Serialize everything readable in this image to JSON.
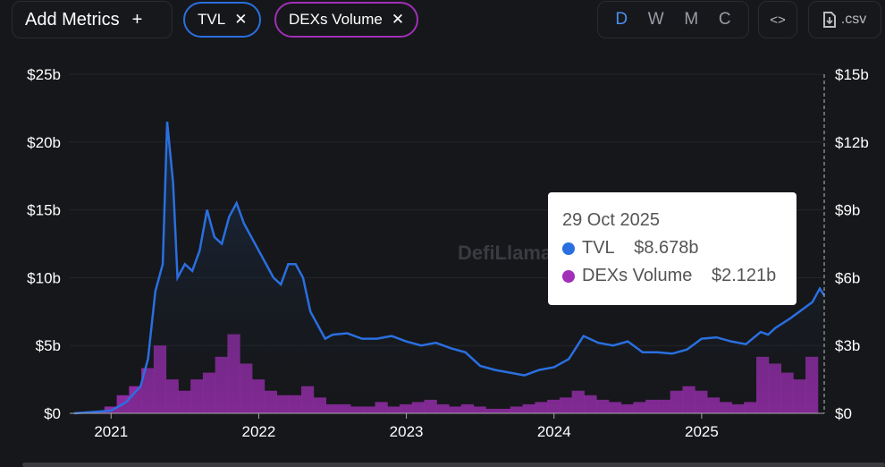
{
  "toolbar": {
    "add_metrics": "Add Metrics",
    "add_icon": "+",
    "chips": [
      {
        "label": "TVL",
        "color": "#2a6fe0"
      },
      {
        "label": "DEXs Volume",
        "color": "#a12fb8"
      }
    ],
    "remove_icon": "✕",
    "periods": [
      "D",
      "W",
      "M",
      "C"
    ],
    "active_period": "D",
    "embed_icon": "<>",
    "csv_label": ".csv"
  },
  "watermark": "DefiLlama",
  "tooltip": {
    "date": "29 Oct 2025",
    "rows": [
      {
        "label": "TVL",
        "value": "$8.678b",
        "color": "#2a6fe0"
      },
      {
        "label": "DEXs Volume",
        "value": "$2.121b",
        "color": "#a12fb8"
      }
    ]
  },
  "chart_data": {
    "type": "line+bar",
    "x_ticks": [
      "2021",
      "2022",
      "2023",
      "2024",
      "2025"
    ],
    "x_tick_values": [
      2021,
      2022,
      2023,
      2024,
      2025
    ],
    "xlim": [
      2020.72,
      2025.83
    ],
    "left_axis": {
      "ticks": [
        "$0",
        "$5b",
        "$10b",
        "$15b",
        "$20b",
        "$25b"
      ],
      "ylim": [
        0,
        25
      ]
    },
    "right_axis": {
      "ticks": [
        "$0",
        "$3b",
        "$6b",
        "$9b",
        "$12b",
        "$15b"
      ],
      "ylim": [
        0,
        15
      ]
    },
    "series": [
      {
        "name": "TVL",
        "axis": "left",
        "color": "#2a6fe0",
        "x": [
          2020.75,
          2021.0,
          2021.1,
          2021.2,
          2021.25,
          2021.3,
          2021.35,
          2021.38,
          2021.42,
          2021.45,
          2021.5,
          2021.55,
          2021.6,
          2021.65,
          2021.7,
          2021.75,
          2021.8,
          2021.85,
          2021.9,
          2021.95,
          2022.0,
          2022.05,
          2022.1,
          2022.15,
          2022.2,
          2022.25,
          2022.3,
          2022.35,
          2022.4,
          2022.45,
          2022.5,
          2022.6,
          2022.7,
          2022.8,
          2022.9,
          2023.0,
          2023.1,
          2023.2,
          2023.3,
          2023.4,
          2023.5,
          2023.6,
          2023.7,
          2023.8,
          2023.9,
          2024.0,
          2024.1,
          2024.2,
          2024.3,
          2024.4,
          2024.5,
          2024.6,
          2024.7,
          2024.8,
          2024.9,
          2025.0,
          2025.1,
          2025.2,
          2025.3,
          2025.4,
          2025.45,
          2025.5,
          2025.6,
          2025.7,
          2025.75,
          2025.8,
          2025.83
        ],
        "values": [
          0,
          0.2,
          0.8,
          2,
          4,
          9,
          11,
          21.5,
          17,
          10,
          11,
          10.5,
          12,
          15,
          13,
          12.5,
          14.5,
          15.5,
          14,
          13,
          12,
          11,
          10,
          9.5,
          11,
          11,
          10,
          7.5,
          6.5,
          5.5,
          5.8,
          5.9,
          5.5,
          5.5,
          5.7,
          5.3,
          5.0,
          5.2,
          4.8,
          4.5,
          3.5,
          3.2,
          3.0,
          2.8,
          3.2,
          3.4,
          4.0,
          5.7,
          5.2,
          5.0,
          5.3,
          4.5,
          4.5,
          4.4,
          4.7,
          5.5,
          5.6,
          5.3,
          5.1,
          6.0,
          5.8,
          6.3,
          7.0,
          7.8,
          8.2,
          9.2,
          8.7
        ]
      },
      {
        "name": "DEXs Volume",
        "axis": "right",
        "color": "#a12fb8",
        "start": 2020.83,
        "step": 0.0833,
        "values": [
          0.05,
          0.1,
          0.3,
          0.8,
          1.2,
          2.0,
          3.0,
          1.5,
          1.0,
          1.5,
          1.8,
          2.5,
          3.5,
          2.2,
          1.5,
          1.0,
          0.8,
          0.8,
          1.2,
          0.7,
          0.4,
          0.4,
          0.3,
          0.3,
          0.5,
          0.3,
          0.4,
          0.5,
          0.6,
          0.4,
          0.3,
          0.4,
          0.3,
          0.2,
          0.2,
          0.3,
          0.4,
          0.5,
          0.6,
          0.7,
          1.0,
          0.8,
          0.6,
          0.5,
          0.4,
          0.5,
          0.6,
          0.6,
          1.0,
          1.2,
          1.0,
          0.7,
          0.5,
          0.4,
          0.5,
          2.5,
          2.2,
          1.8,
          1.5,
          2.5
        ]
      }
    ],
    "legend": "top"
  }
}
